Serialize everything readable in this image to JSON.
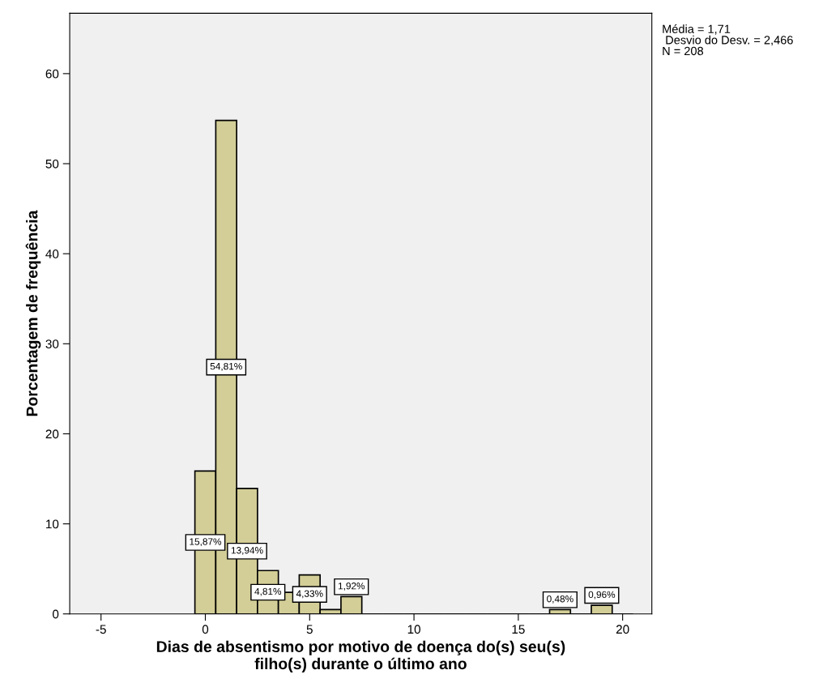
{
  "chart_data": {
    "type": "histogram",
    "xlabel": "Dias de absentismo por motivo de doença do(s) seu(s)\nfilho(s) durante o último ano",
    "ylabel": "Porcentagem de frequência",
    "bins": [
      -0.5,
      0.5,
      1.5,
      2.5,
      3.5,
      4.5,
      5.5,
      6.5,
      7.5,
      8.5,
      9.5,
      10.5,
      11.5,
      12.5,
      13.5,
      14.5,
      15.5,
      16.5,
      17.5,
      18.5,
      19.5,
      20.5
    ],
    "values": [
      15.87,
      54.81,
      13.94,
      4.81,
      2.4,
      4.33,
      0.48,
      1.92,
      0,
      0,
      0,
      0,
      0,
      0,
      0,
      0,
      0,
      0.48,
      0,
      0.96,
      0
    ],
    "value_labels": [
      "15,87%",
      "54,81%",
      "13,94%",
      "4,81%",
      null,
      "4,33%",
      null,
      "1,92%",
      null,
      null,
      null,
      null,
      null,
      null,
      null,
      null,
      null,
      "0,48%",
      null,
      "0,96%",
      null
    ],
    "color": "#d3ce97",
    "xlim": [
      -6.5,
      21.4
    ],
    "xticks": [
      -5,
      0,
      5,
      10,
      15,
      20
    ],
    "ylim": [
      0,
      66.7
    ],
    "yticks": [
      0,
      10,
      20,
      30,
      40,
      50,
      60
    ],
    "grid": false,
    "annotations": [
      "Média = 1,71",
      " Desvio do Desv. = 2,466",
      "N = 208"
    ]
  }
}
